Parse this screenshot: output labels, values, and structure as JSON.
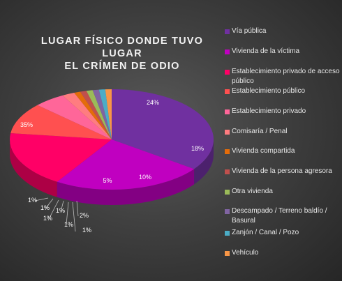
{
  "chart_data": {
    "type": "pie",
    "title": [
      "LUGAR FÍSICO DONDE TUVO LUGAR",
      "EL CRÍMEN DE ODIO"
    ],
    "legend_position": "right",
    "slices": [
      {
        "label": "Vía pública",
        "value": 35,
        "value_label": "35%",
        "color": "#7030a0"
      },
      {
        "label": "Vivienda de la víctima",
        "value": 24,
        "value_label": "24%",
        "color": "#c000c0"
      },
      {
        "label": "Establecimiento privado de acceso público",
        "value": 18,
        "value_label": "18%",
        "color": "#ff0066"
      },
      {
        "label": "Establecimiento público",
        "value": 10,
        "value_label": "10%",
        "color": "#ff5050"
      },
      {
        "label": "Establecimiento privado",
        "value": 5,
        "value_label": "5%",
        "color": "#ff6699"
      },
      {
        "label": "Comisaría / Penal",
        "value": 2,
        "value_label": "2%",
        "color": "#ff7c80"
      },
      {
        "label": "Vivienda compartida",
        "value": 1,
        "value_label": "1%",
        "color": "#e46c0a"
      },
      {
        "label": "Vivienda de la persona agresora",
        "value": 1,
        "value_label": "1%",
        "color": "#c0504d"
      },
      {
        "label": "Otra vivienda",
        "value": 1,
        "value_label": "1%",
        "color": "#9bbb59"
      },
      {
        "label": "Descampado / Terreno baldío / Basural",
        "value": 1,
        "value_label": "1%",
        "color": "#8064a2"
      },
      {
        "label": "Zanjón / Canal / Pozo",
        "value": 1,
        "value_label": "1%",
        "color": "#4bacc6"
      },
      {
        "label": "Vehículo",
        "value": 1,
        "value_label": "1%",
        "color": "#f79646"
      }
    ]
  }
}
